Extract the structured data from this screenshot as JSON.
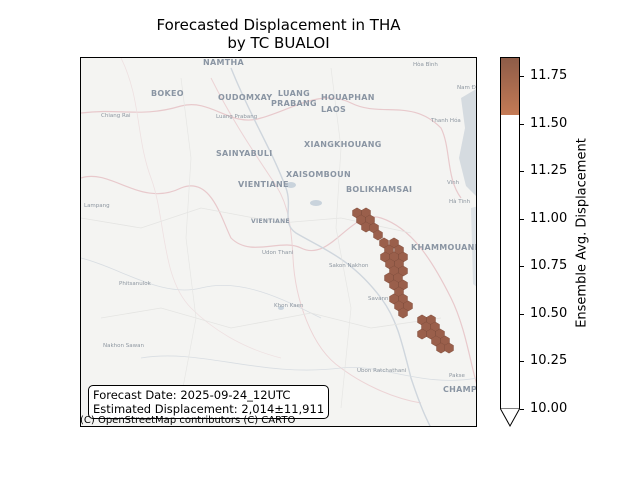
{
  "title_line1": "Forecasted Displacement in THA",
  "title_line2": "by TC BUALOI",
  "info": {
    "forecast_date": "Forecast Date: 2025-09-24_12UTC",
    "estimated_displacement": "Estimated Displacement: 2,014±11,911"
  },
  "attribution": "(C) OpenStreetMap contributors (C) CARTO",
  "colorbar": {
    "label": "Ensemble Avg. Displacement",
    "ticks": [
      "11.75",
      "11.50",
      "11.25",
      "11.00",
      "10.75",
      "10.50",
      "10.25",
      "10.00"
    ],
    "min": 10.0,
    "max": 11.85,
    "filled_above": 11.55,
    "color_low": "#c47a55",
    "color_high": "#8e5c48"
  },
  "hex_color": "#9a5f4b",
  "places": {
    "namtha": "NAMTHA",
    "bokeo": "BOKEO",
    "oudomxay": "OUDOMXAY",
    "luang_prabang": "LUANG\nPRABANG",
    "houaphan": "HOUAPHAN",
    "laos": "LAOS",
    "hoa_binh": "Hòa Bình",
    "nam_dinh": "Nam Đ",
    "chiang_rai": "Chiang Rai",
    "luang_prabang_city": "Luang Prabang",
    "thanh_hoa": "Thanh Hóa",
    "xiangkhouang": "XIANGKHOUANG",
    "sainyabuli": "SAINYABULI",
    "xaisomboun": "XAISOMBOUN",
    "vientiane_prov": "VIENTIANE",
    "bolikhamsai": "BOLIKHAMSAI",
    "vinh": "Vinh",
    "lampang": "Lampang",
    "ha_tinh": "Hà Tĩnh",
    "vientiane_city": "VIENTIANE",
    "khammouane": "KHAMMOUANE",
    "udon_thani": "Udon Thani",
    "sakon_nakhon": "Sakon Nakhon",
    "phitsanulok": "Phitsanulok",
    "savannakhet": "Savann",
    "khon_kaen": "Khon Kaen",
    "nakhon_sawan": "Nakhon Sawan",
    "ubon": "Ubon Ratchathani",
    "pakse": "Pakse",
    "champasak": "CHAMPA"
  }
}
